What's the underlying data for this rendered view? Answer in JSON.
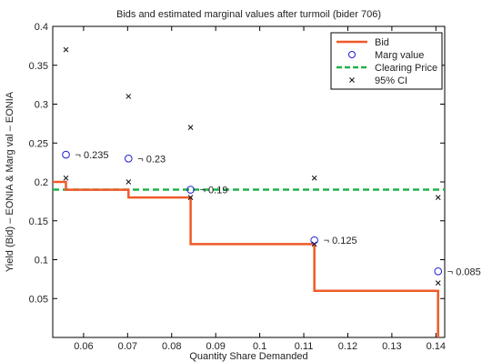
{
  "chart_data": {
    "type": "line",
    "title": "Bids and estimated marginal values after turmoil (bider 706)",
    "xlabel": "Quantity Share Demanded",
    "ylabel": "Yield (Bid) – EONIA & Marg val – EONIA",
    "xlim": [
      0.053,
      0.142
    ],
    "ylim": [
      0.0,
      0.4
    ],
    "xticks": [
      "0.06",
      "0.07",
      "0.08",
      "0.09",
      "0.1",
      "0.11",
      "0.12",
      "0.13",
      "0.14"
    ],
    "yticks": [
      "0.05",
      "0.1",
      "0.15",
      "0.2",
      "0.25",
      "0.3",
      "0.35",
      "0.4"
    ],
    "grid": false,
    "legend_position": "top-right",
    "colors": {
      "bid": "#f05a28",
      "marg": "#1c1cd0",
      "clearing": "#22b14c",
      "ci": "#111111"
    },
    "series": [
      {
        "name": "Bid",
        "style": "step",
        "points": [
          [
            0.053,
            0.2
          ],
          [
            0.056,
            0.2
          ],
          [
            0.056,
            0.19
          ],
          [
            0.0702,
            0.19
          ],
          [
            0.0702,
            0.18
          ],
          [
            0.0843,
            0.18
          ],
          [
            0.0843,
            0.12
          ],
          [
            0.1124,
            0.12
          ],
          [
            0.1124,
            0.06
          ],
          [
            0.1405,
            0.06
          ],
          [
            0.1405,
            0.0
          ]
        ]
      },
      {
        "name": "Marg value",
        "style": "circle",
        "points": [
          [
            0.056,
            0.235
          ],
          [
            0.0702,
            0.23
          ],
          [
            0.0843,
            0.19
          ],
          [
            0.1124,
            0.125
          ],
          [
            0.1405,
            0.085
          ]
        ]
      },
      {
        "name": "Clearing Price",
        "style": "dashed",
        "y": 0.19
      },
      {
        "name": "95% CI",
        "style": "cross",
        "points": [
          [
            0.056,
            0.37
          ],
          [
            0.056,
            0.205
          ],
          [
            0.0702,
            0.31
          ],
          [
            0.0702,
            0.2
          ],
          [
            0.0843,
            0.27
          ],
          [
            0.0843,
            0.18
          ],
          [
            0.1124,
            0.205
          ],
          [
            0.1124,
            0.12
          ],
          [
            0.1405,
            0.18
          ],
          [
            0.1405,
            0.07
          ]
        ]
      }
    ],
    "annotations": [
      {
        "x": 0.056,
        "y": 0.235,
        "text": "¬ 0.235"
      },
      {
        "x": 0.0702,
        "y": 0.23,
        "text": "¬ 0.23"
      },
      {
        "x": 0.0843,
        "y": 0.19,
        "text": "¬ 0.19"
      },
      {
        "x": 0.1124,
        "y": 0.125,
        "text": "¬ 0.125"
      },
      {
        "x": 0.1405,
        "y": 0.085,
        "text": "¬ 0.085"
      }
    ]
  }
}
